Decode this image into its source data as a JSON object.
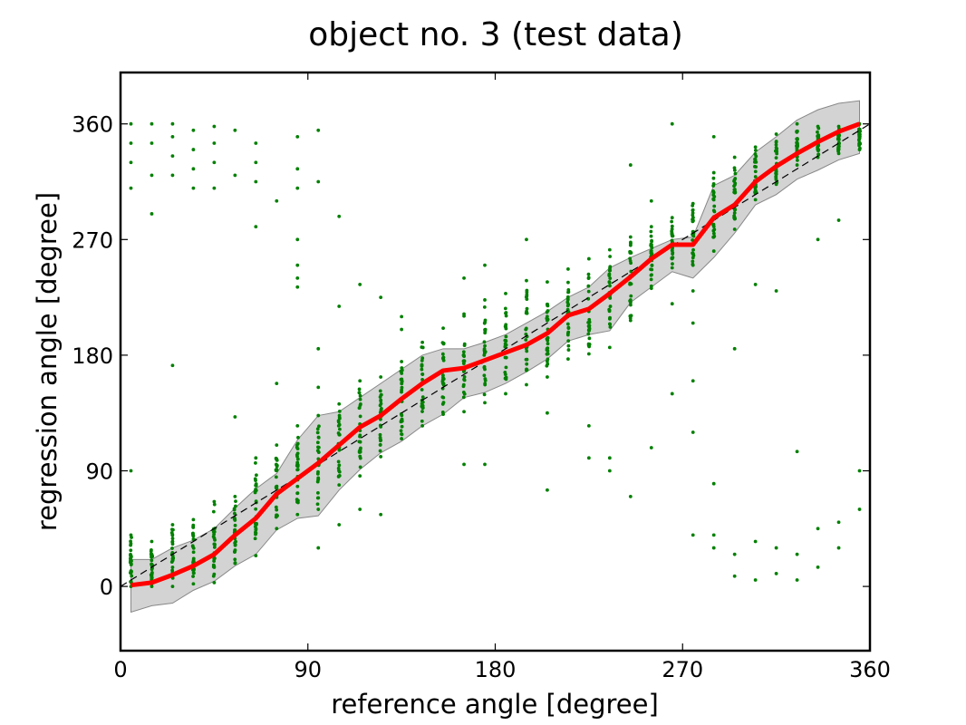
{
  "chart_data": {
    "type": "line",
    "title": "object no. 3 (test data)",
    "xlabel": "reference angle [degree]",
    "ylabel": "regression angle [degree]",
    "xlim": [
      0,
      360
    ],
    "ylim": [
      -50,
      400
    ],
    "xticks": [
      0,
      90,
      180,
      270,
      360
    ],
    "yticks": [
      0,
      90,
      180,
      270,
      360
    ],
    "grid": false,
    "series": [
      {
        "kind": "mean-line",
        "color": "#ff0000",
        "x": [
          5,
          15,
          25,
          35,
          45,
          55,
          65,
          75,
          85,
          95,
          105,
          115,
          125,
          135,
          145,
          155,
          165,
          175,
          185,
          195,
          205,
          215,
          225,
          235,
          245,
          255,
          265,
          275,
          285,
          295,
          305,
          315,
          325,
          335,
          345,
          355
        ],
        "y": [
          1,
          3,
          9,
          16,
          25,
          40,
          53,
          72,
          84,
          96,
          110,
          124,
          133,
          146,
          158,
          168,
          170,
          176,
          182,
          188,
          197,
          211,
          216,
          228,
          241,
          255,
          266,
          266,
          287,
          297,
          315,
          327,
          337,
          346,
          354,
          360
        ]
      },
      {
        "kind": "reference-line",
        "style": "dashed",
        "color": "#000000",
        "x": [
          0,
          360
        ],
        "y": [
          0,
          360
        ]
      },
      {
        "kind": "band",
        "color": "#d3d3d3",
        "x": [
          5,
          15,
          25,
          35,
          45,
          55,
          65,
          75,
          85,
          95,
          105,
          115,
          125,
          135,
          145,
          155,
          165,
          175,
          185,
          195,
          205,
          215,
          225,
          235,
          245,
          255,
          265,
          275,
          285,
          295,
          305,
          315,
          325,
          335,
          345,
          355
        ],
        "upper": [
          21,
          21,
          30,
          36,
          45,
          61,
          76,
          88,
          114,
          133,
          136,
          147,
          158,
          169,
          180,
          185,
          185,
          190,
          196,
          205,
          214,
          225,
          233,
          248,
          256,
          263,
          270,
          272,
          312,
          320,
          338,
          350,
          363,
          371,
          376,
          378
        ],
        "lower": [
          -20,
          -15,
          -13,
          -3,
          4,
          16,
          25,
          44,
          53,
          55,
          75,
          91,
          104,
          113,
          125,
          134,
          147,
          151,
          158,
          167,
          177,
          191,
          196,
          199,
          221,
          233,
          245,
          240,
          256,
          275,
          297,
          305,
          317,
          324,
          332,
          337
        ]
      },
      {
        "kind": "samples",
        "color": "#008000",
        "x": [
          5,
          15,
          25,
          35,
          45,
          55,
          65,
          75,
          85,
          95,
          105,
          115,
          125,
          135,
          145,
          155,
          165,
          175,
          185,
          195,
          205,
          215,
          225,
          235,
          245,
          255,
          265,
          275,
          285,
          295,
          305,
          315,
          325,
          335,
          345,
          355
        ],
        "main_min": [
          0,
          0,
          0,
          2,
          3,
          18,
          24,
          45,
          56,
          60,
          79,
          86,
          101,
          115,
          125,
          134,
          136,
          143,
          150,
          157,
          163,
          177,
          181,
          186,
          207,
          232,
          248,
          250,
          261,
          278,
          301,
          313,
          328,
          334,
          337,
          340
        ],
        "main_max": [
          40,
          35,
          48,
          52,
          66,
          70,
          100,
          110,
          125,
          133,
          142,
          160,
          163,
          175,
          190,
          201,
          212,
          223,
          228,
          238,
          237,
          247,
          255,
          262,
          272,
          280,
          287,
          298,
          322,
          334,
          342,
          352,
          360,
          358,
          358,
          360
        ],
        "outliers": [
          [
            5,
            310
          ],
          [
            5,
            330
          ],
          [
            5,
            345
          ],
          [
            5,
            360
          ],
          [
            5,
            90
          ],
          [
            15,
            320
          ],
          [
            15,
            345
          ],
          [
            15,
            360
          ],
          [
            15,
            290
          ],
          [
            25,
            320
          ],
          [
            25,
            335
          ],
          [
            25,
            350
          ],
          [
            25,
            360
          ],
          [
            25,
            172
          ],
          [
            35,
            310
          ],
          [
            35,
            325
          ],
          [
            35,
            340
          ],
          [
            35,
            355
          ],
          [
            45,
            310
          ],
          [
            45,
            330
          ],
          [
            45,
            345
          ],
          [
            45,
            358
          ],
          [
            55,
            320
          ],
          [
            55,
            355
          ],
          [
            55,
            132
          ],
          [
            65,
            315
          ],
          [
            65,
            330
          ],
          [
            65,
            345
          ],
          [
            65,
            280
          ],
          [
            75,
            158
          ],
          [
            75,
            300
          ],
          [
            85,
            310
          ],
          [
            85,
            325
          ],
          [
            85,
            350
          ],
          [
            85,
            270
          ],
          [
            85,
            250
          ],
          [
            85,
            240
          ],
          [
            85,
            233
          ],
          [
            95,
            30
          ],
          [
            95,
            155
          ],
          [
            95,
            185
          ],
          [
            95,
            315
          ],
          [
            95,
            355
          ],
          [
            105,
            48
          ],
          [
            105,
            218
          ],
          [
            105,
            288
          ],
          [
            115,
            60
          ],
          [
            115,
            235
          ],
          [
            125,
            56
          ],
          [
            125,
            225
          ],
          [
            135,
            200
          ],
          [
            135,
            210
          ],
          [
            165,
            95
          ],
          [
            165,
            240
          ],
          [
            175,
            95
          ],
          [
            175,
            250
          ],
          [
            195,
            270
          ],
          [
            205,
            75
          ],
          [
            205,
            135
          ],
          [
            225,
            100
          ],
          [
            225,
            125
          ],
          [
            235,
            90
          ],
          [
            235,
            100
          ],
          [
            245,
            70
          ],
          [
            245,
            328
          ],
          [
            255,
            108
          ],
          [
            255,
            300
          ],
          [
            265,
            150
          ],
          [
            265,
            220
          ],
          [
            265,
            360
          ],
          [
            275,
            40
          ],
          [
            275,
            120
          ],
          [
            275,
            160
          ],
          [
            275,
            205
          ],
          [
            275,
            230
          ],
          [
            285,
            30
          ],
          [
            285,
            40
          ],
          [
            285,
            80
          ],
          [
            285,
            350
          ],
          [
            295,
            185
          ],
          [
            295,
            25
          ],
          [
            295,
            8
          ],
          [
            305,
            5
          ],
          [
            305,
            235
          ],
          [
            305,
            35
          ],
          [
            315,
            10
          ],
          [
            315,
            30
          ],
          [
            315,
            230
          ],
          [
            325,
            5
          ],
          [
            325,
            25
          ],
          [
            325,
            105
          ],
          [
            335,
            15
          ],
          [
            335,
            45
          ],
          [
            335,
            270
          ],
          [
            345,
            30
          ],
          [
            345,
            50
          ],
          [
            345,
            285
          ],
          [
            355,
            60
          ],
          [
            355,
            90
          ]
        ]
      }
    ]
  }
}
